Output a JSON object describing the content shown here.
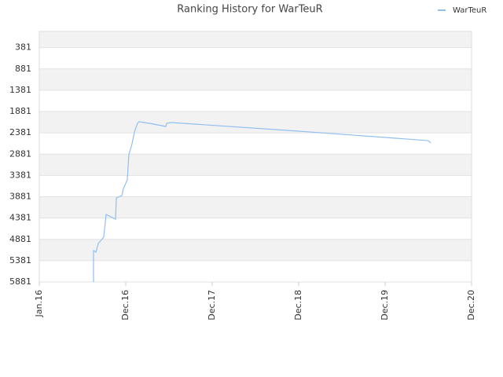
{
  "chart_data": {
    "type": "line",
    "title": "Ranking History for WarTeuR",
    "x": [
      0.627,
      0.627,
      0.655,
      0.682,
      0.745,
      0.773,
      0.882,
      0.891,
      0.955,
      0.973,
      1.018,
      1.036,
      1.073,
      1.1,
      1.136,
      1.155,
      1.273,
      1.464,
      1.473,
      1.527,
      3.0,
      4.5,
      4.527
    ],
    "series": [
      {
        "name": "WarTeuR",
        "color": "#90bff0",
        "values": [
          5881,
          5144,
          5181,
          4978,
          4830,
          4296,
          4406,
          3908,
          3853,
          3687,
          3484,
          2894,
          2636,
          2360,
          2157,
          2120,
          2157,
          2231,
          2157,
          2139,
          2341,
          2563,
          2618
        ]
      }
    ],
    "xlim": [
      0,
      5
    ],
    "xticks": [
      {
        "value": 0,
        "label": "Jan.16"
      },
      {
        "value": 1,
        "label": "Dec.16"
      },
      {
        "value": 2,
        "label": "Dec.17"
      },
      {
        "value": 3,
        "label": "Dec.18"
      },
      {
        "value": 4,
        "label": "Dec.19"
      },
      {
        "value": 5,
        "label": "Dec.20"
      }
    ],
    "ylim": [
      5881,
      0
    ],
    "yticks": [
      381,
      881,
      1381,
      1881,
      2381,
      2881,
      3381,
      3881,
      4381,
      4881,
      5381,
      5881
    ],
    "grid": true,
    "legend": "top-right"
  }
}
